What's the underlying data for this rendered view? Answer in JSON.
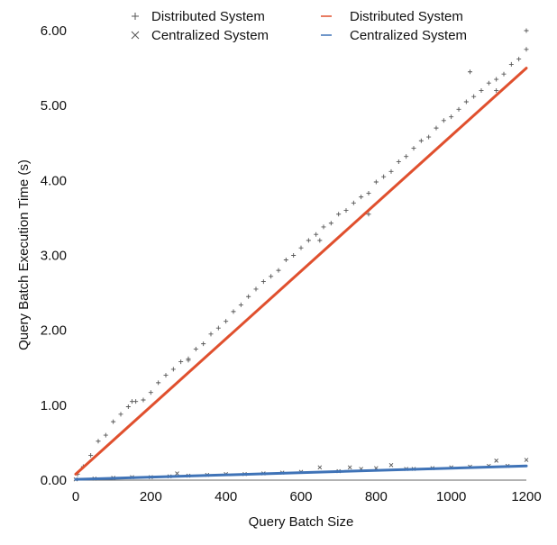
{
  "chart_data": {
    "type": "scatter",
    "xlabel": "Query Batch Size",
    "ylabel": "Query Batch Execution Time (s)",
    "xlim": [
      0,
      1200
    ],
    "ylim": [
      0,
      6
    ],
    "x_ticks": [
      "0",
      "200",
      "400",
      "600",
      "800",
      "1000",
      "1200"
    ],
    "y_ticks": [
      "0.00",
      "1.00",
      "2.00",
      "3.00",
      "4.00",
      "5.00",
      "6.00"
    ],
    "grid": false,
    "legend_position": "top",
    "legend": [
      {
        "label": "Distributed System",
        "marker": "plus",
        "color": "#555555"
      },
      {
        "label": "Centralized System",
        "marker": "x",
        "color": "#555555"
      },
      {
        "label": "Distributed System",
        "marker": "line",
        "color": "#e0502e"
      },
      {
        "label": "Centralized System",
        "marker": "line",
        "color": "#3f73b7"
      }
    ],
    "series": [
      {
        "name": "Distributed System",
        "kind": "scatter",
        "marker": "plus",
        "color": "#555555",
        "x": [
          5,
          20,
          40,
          60,
          80,
          100,
          120,
          140,
          160,
          180,
          200,
          220,
          240,
          260,
          280,
          300,
          320,
          340,
          360,
          380,
          400,
          420,
          440,
          460,
          480,
          500,
          520,
          540,
          560,
          580,
          600,
          620,
          640,
          660,
          680,
          700,
          720,
          740,
          760,
          780,
          800,
          820,
          840,
          860,
          880,
          900,
          920,
          940,
          960,
          980,
          1000,
          1020,
          1040,
          1060,
          1080,
          1100,
          1120,
          1140,
          1160,
          1180,
          1200,
          150,
          300,
          650,
          780,
          1050,
          1120,
          1200
        ],
        "y": [
          0.08,
          0.18,
          0.33,
          0.52,
          0.6,
          0.78,
          0.88,
          0.98,
          1.05,
          1.07,
          1.17,
          1.3,
          1.4,
          1.48,
          1.58,
          1.62,
          1.75,
          1.82,
          1.95,
          2.03,
          2.12,
          2.25,
          2.34,
          2.45,
          2.55,
          2.65,
          2.72,
          2.8,
          2.94,
          3.0,
          3.1,
          3.2,
          3.28,
          3.38,
          3.43,
          3.55,
          3.6,
          3.7,
          3.78,
          3.83,
          3.98,
          4.05,
          4.12,
          4.25,
          4.32,
          4.43,
          4.53,
          4.58,
          4.7,
          4.8,
          4.85,
          4.95,
          5.05,
          5.12,
          5.2,
          5.3,
          5.35,
          5.42,
          5.55,
          5.62,
          5.75,
          1.05,
          1.6,
          3.2,
          3.55,
          5.45,
          5.2,
          6.0
        ]
      },
      {
        "name": "Centralized System",
        "kind": "scatter",
        "marker": "x",
        "color": "#555555",
        "x": [
          0,
          50,
          100,
          150,
          200,
          250,
          270,
          300,
          350,
          400,
          450,
          500,
          550,
          600,
          650,
          700,
          730,
          760,
          800,
          840,
          880,
          900,
          950,
          1000,
          1050,
          1100,
          1120,
          1150,
          1200
        ],
        "y": [
          0.01,
          0.02,
          0.03,
          0.04,
          0.04,
          0.05,
          0.09,
          0.06,
          0.07,
          0.08,
          0.08,
          0.09,
          0.1,
          0.11,
          0.17,
          0.12,
          0.17,
          0.15,
          0.16,
          0.2,
          0.15,
          0.15,
          0.16,
          0.17,
          0.18,
          0.19,
          0.26,
          0.19,
          0.27
        ]
      },
      {
        "name": "Distributed System",
        "kind": "line",
        "color": "#e0502e",
        "x": [
          0,
          1200
        ],
        "y": [
          0.08,
          5.5
        ]
      },
      {
        "name": "Centralized System",
        "kind": "line",
        "color": "#3f73b7",
        "x": [
          0,
          1200
        ],
        "y": [
          0.01,
          0.19
        ]
      }
    ]
  }
}
